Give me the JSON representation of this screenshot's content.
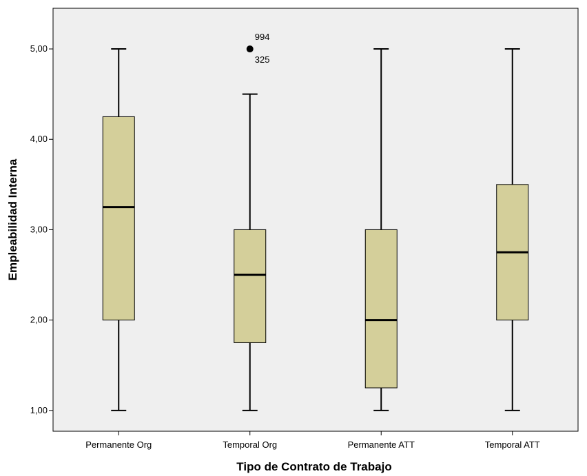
{
  "chart_data": {
    "type": "boxplot",
    "xlabel": "Tipo de Contrato de Trabajo",
    "ylabel": "Empleabilidad Interna",
    "ylim": [
      0.77,
      5.45
    ],
    "yticks": [
      "1,00",
      "2,00",
      "3,00",
      "4,00",
      "5,00"
    ],
    "ytick_values": [
      1,
      2,
      3,
      4,
      5
    ],
    "grid": false,
    "colors": {
      "plot_background": "#efefef",
      "box_fill": "#d4cf9a",
      "stroke": "#000000"
    },
    "categories": [
      "Permanente Org",
      "Temporal Org",
      "Permanente ATT",
      "Temporal ATT"
    ],
    "boxes": [
      {
        "category": "Permanente Org",
        "whisker_low": 1.0,
        "q1": 2.0,
        "median": 3.25,
        "q3": 4.25,
        "whisker_high": 5.0,
        "outliers": []
      },
      {
        "category": "Temporal Org",
        "whisker_low": 1.0,
        "q1": 1.75,
        "median": 2.5,
        "q3": 3.0,
        "whisker_high": 4.5,
        "outliers": [
          {
            "value": 5.0,
            "labels": [
              "994",
              "325"
            ]
          }
        ]
      },
      {
        "category": "Permanente ATT",
        "whisker_low": 1.0,
        "q1": 1.25,
        "median": 2.0,
        "q3": 3.0,
        "whisker_high": 5.0,
        "outliers": []
      },
      {
        "category": "Temporal ATT",
        "whisker_low": 1.0,
        "q1": 2.0,
        "median": 2.75,
        "q3": 3.5,
        "whisker_high": 5.0,
        "outliers": []
      }
    ]
  }
}
